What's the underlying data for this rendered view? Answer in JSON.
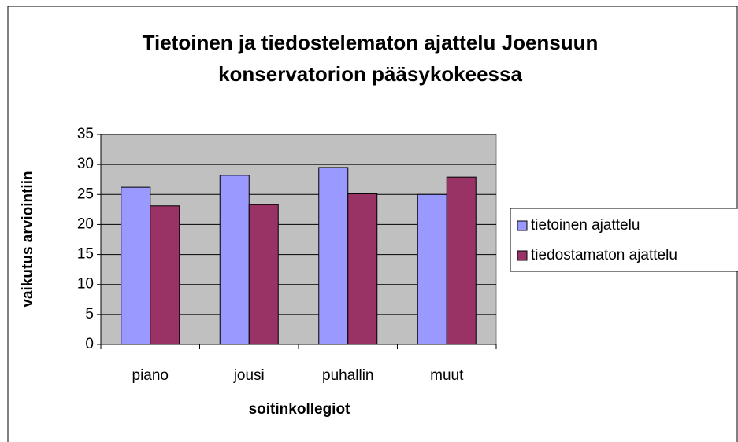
{
  "chart_data": {
    "type": "bar",
    "title": [
      "Tietoinen ja tiedostelematon ajattelu Joensuun",
      "konservatorion pääsykokeessa"
    ],
    "x_label": "soitinkollegiot",
    "y_label": "vaikutus arviointiin",
    "categories": [
      "piano",
      "jousi",
      "puhallin",
      "muut"
    ],
    "series": [
      {
        "name": "tietoinen ajattelu",
        "color": "#9999ff",
        "values": [
          26.2,
          28.2,
          29.5,
          25
        ]
      },
      {
        "name": "tiedostamaton ajattelu",
        "color": "#993366",
        "values": [
          23.1,
          23.3,
          25.1,
          27.9
        ]
      }
    ],
    "ylim": [
      0,
      35
    ],
    "yticks": [
      0,
      5,
      10,
      15,
      20,
      25,
      30,
      35
    ],
    "grid": true,
    "legend": "right"
  }
}
